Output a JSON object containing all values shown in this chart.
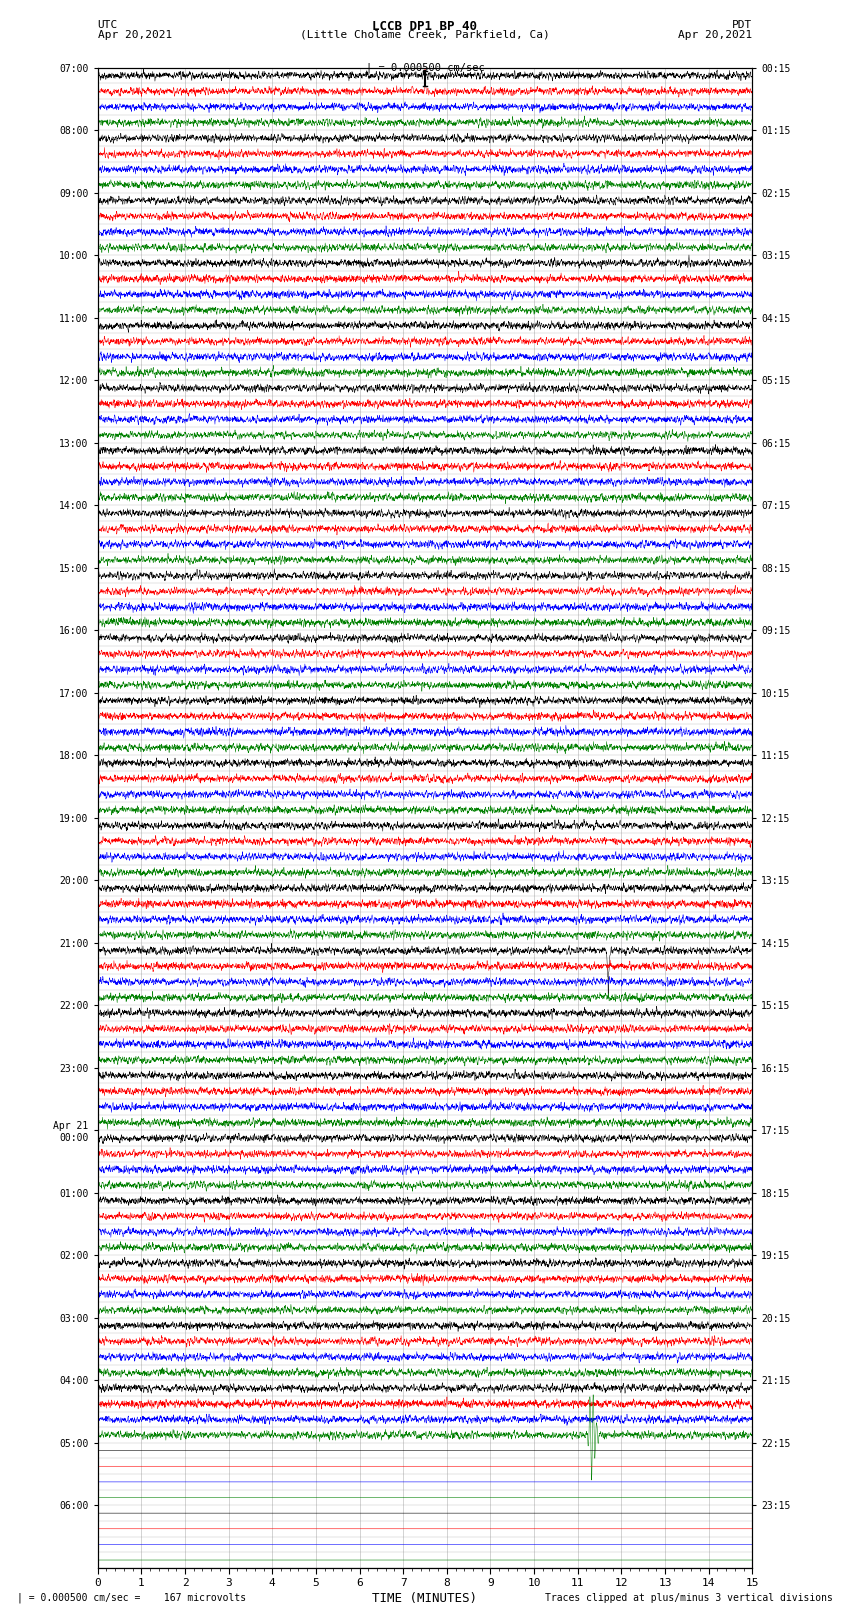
{
  "title_line1": "LCCB DP1 BP 40",
  "title_line2": "(Little Cholame Creek, Parkfield, Ca)",
  "label_left_top": "UTC",
  "label_left_date": "Apr 20,2021",
  "label_right_top": "PDT",
  "label_right_date": "Apr 20,2021",
  "scale_text": "| = 0.000500 cm/sec",
  "bottom_left": "| = 0.000500 cm/sec =    167 microvolts",
  "bottom_right": "Traces clipped at plus/minus 3 vertical divisions",
  "xlabel": "TIME (MINUTES)",
  "left_times": [
    "07:00",
    "08:00",
    "09:00",
    "10:00",
    "11:00",
    "12:00",
    "13:00",
    "14:00",
    "15:00",
    "16:00",
    "17:00",
    "18:00",
    "19:00",
    "20:00",
    "21:00",
    "22:00",
    "23:00",
    "Apr 21\n00:00",
    "01:00",
    "02:00",
    "03:00",
    "04:00",
    "05:00",
    "06:00"
  ],
  "right_times": [
    "00:15",
    "01:15",
    "02:15",
    "03:15",
    "04:15",
    "05:15",
    "06:15",
    "07:15",
    "08:15",
    "09:15",
    "10:15",
    "11:15",
    "12:15",
    "13:15",
    "14:15",
    "15:15",
    "16:15",
    "17:15",
    "18:15",
    "19:15",
    "20:15",
    "21:15",
    "22:15",
    "23:15"
  ],
  "n_rows": 24,
  "n_traces_per_row": 4,
  "trace_colors": [
    "black",
    "red",
    "blue",
    "green"
  ],
  "xmin": 0,
  "xmax": 15,
  "xticks": [
    0,
    1,
    2,
    3,
    4,
    5,
    6,
    7,
    8,
    9,
    10,
    11,
    12,
    13,
    14,
    15
  ],
  "bg_color": "white",
  "active_rows": 22,
  "spike_row_red": 0,
  "spike_col_red": 7.5,
  "spike_row_black": 14,
  "spike_col_black": 11.7,
  "spike_row_green": 21,
  "spike_col_green": 11.3,
  "noise_seed": 42
}
